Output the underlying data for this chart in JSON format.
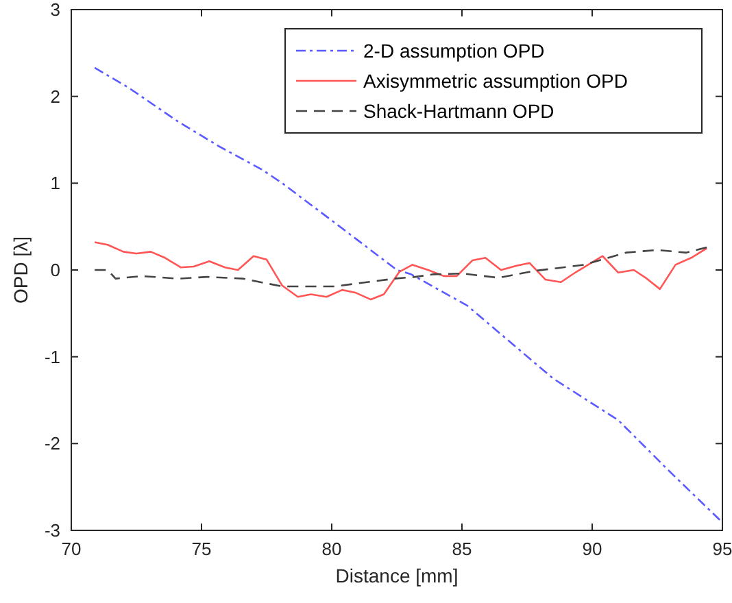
{
  "chart_data": {
    "type": "line",
    "xlabel": "Distance [mm]",
    "ylabel": "OPD [λ]",
    "xlim": [
      70,
      95
    ],
    "xticks": [
      70,
      75,
      80,
      85,
      90,
      95
    ],
    "ylim": [
      -3,
      3
    ],
    "yticks": [
      -3,
      -2,
      -1,
      0,
      1,
      2,
      3
    ],
    "grid": false,
    "legend": "top right",
    "series": [
      {
        "name": "2-D assumption OPD",
        "color": "#5a5aff",
        "line_style": "dashdot",
        "x": [
          70.9,
          72.2,
          74.1,
          75.7,
          77.3,
          78.1,
          80.4,
          82.5,
          83.05,
          85.2,
          88.5,
          91,
          92.9,
          94.9
        ],
        "values": [
          2.33,
          2.1,
          1.71,
          1.42,
          1.16,
          1.0,
          0.48,
          0.0,
          -0.05,
          -0.41,
          -1.25,
          -1.73,
          -2.3,
          -2.88
        ]
      },
      {
        "name": "Axisymmetric assumption OPD",
        "color": "#ff5555",
        "line_style": "solid",
        "x": [
          70.9,
          71.4,
          72.0,
          72.5,
          73.05,
          73.6,
          74.2,
          74.7,
          75.3,
          75.9,
          76.4,
          77.0,
          77.5,
          78.1,
          78.7,
          79.2,
          79.8,
          80.4,
          80.9,
          81.5,
          82.0,
          82.6,
          83.1,
          83.7,
          84.3,
          84.8,
          85.4,
          85.9,
          86.5,
          87.1,
          87.6,
          88.2,
          88.8,
          89.4,
          90.4,
          91.0,
          91.6,
          92.1,
          92.6,
          93.2,
          93.8,
          94.4
        ],
        "values": [
          0.32,
          0.29,
          0.21,
          0.19,
          0.21,
          0.14,
          0.03,
          0.04,
          0.1,
          0.03,
          0.0,
          0.16,
          0.12,
          -0.18,
          -0.31,
          -0.28,
          -0.31,
          -0.23,
          -0.26,
          -0.34,
          -0.28,
          -0.02,
          0.06,
          0.0,
          -0.07,
          -0.07,
          0.11,
          0.14,
          0.0,
          0.05,
          0.08,
          -0.11,
          -0.14,
          -0.02,
          0.16,
          -0.03,
          0.0,
          -0.1,
          -0.22,
          0.06,
          0.14,
          0.25
        ]
      },
      {
        "name": "Shack-Hartmann OPD",
        "color": "#444444",
        "line_style": "dashed",
        "x": [
          70.9,
          71.4,
          71.7,
          72.7,
          74.1,
          75.2,
          76.6,
          78.1,
          80.1,
          81.1,
          82.4,
          83.2,
          83.9,
          85.0,
          86.4,
          87.8,
          89.7,
          91.3,
          92.5,
          93.6,
          94.4
        ],
        "values": [
          0.0,
          0.0,
          -0.1,
          -0.07,
          -0.1,
          -0.08,
          -0.1,
          -0.19,
          -0.19,
          -0.15,
          -0.1,
          -0.08,
          -0.05,
          -0.04,
          -0.09,
          -0.01,
          0.06,
          0.2,
          0.23,
          0.2,
          0.26
        ]
      }
    ]
  }
}
